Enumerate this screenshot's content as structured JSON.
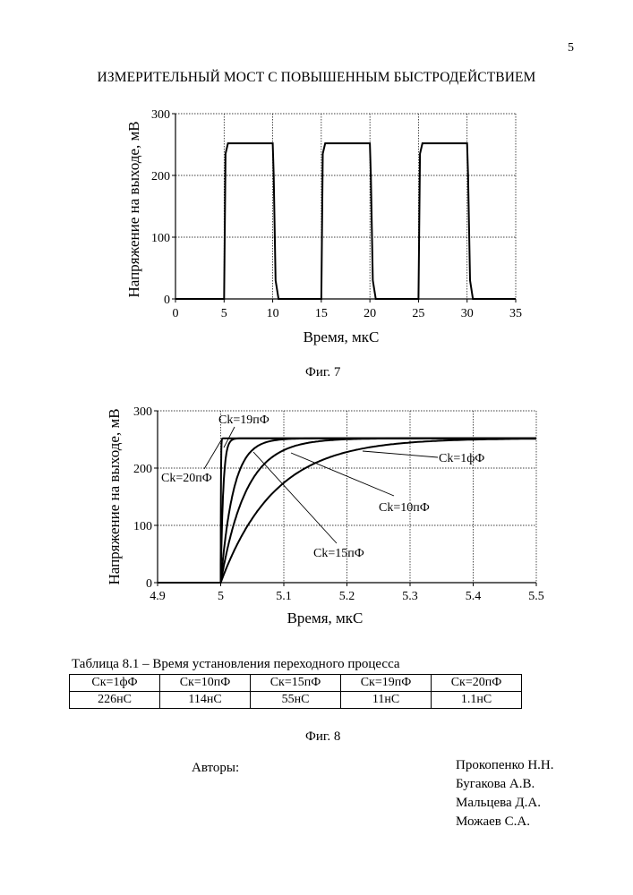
{
  "page": {
    "number": "5",
    "title": "ИЗМЕРИТЕЛЬНЫЙ МОСТ С ПОВЫШЕННЫМ БЫСТРОДЕЙСТВИЕМ"
  },
  "figures": {
    "fig7_caption": "Фиг. 7",
    "fig8_caption": "Фиг. 8"
  },
  "chart_data": [
    {
      "type": "line",
      "xlabel": "Время, мкС",
      "ylabel": "Напряжение на выходе, мВ",
      "xlim": [
        0,
        35
      ],
      "ylim": [
        0,
        300
      ],
      "x_ticks": [
        "0",
        "5",
        "10",
        "15",
        "20",
        "25",
        "30",
        "35"
      ],
      "y_ticks": [
        "0",
        "100",
        "200",
        "300"
      ],
      "grid": true,
      "series": [
        {
          "x": [
            0,
            4.9,
            5.0,
            5.15,
            5.4,
            10.0,
            10.1,
            10.3,
            10.6,
            14.9,
            15.0,
            15.15,
            15.4,
            20.0,
            20.1,
            20.3,
            20.6,
            24.9,
            25.0,
            25.15,
            25.4,
            30.0,
            30.1,
            30.3,
            30.6,
            35
          ],
          "y": [
            0,
            0,
            0,
            235,
            252,
            252,
            200,
            30,
            0,
            0,
            0,
            235,
            252,
            252,
            200,
            30,
            0,
            0,
            0,
            235,
            252,
            252,
            200,
            30,
            0,
            0
          ]
        }
      ]
    },
    {
      "type": "line",
      "xlabel": "Время, мкС",
      "ylabel": "Напряжение на выходе, мВ",
      "xlim": [
        4.9,
        5.5
      ],
      "ylim": [
        0,
        300
      ],
      "x_ticks": [
        "4.9",
        "5",
        "5.1",
        "5.2",
        "5.3",
        "5.4",
        "5.5"
      ],
      "y_ticks": [
        "0",
        "100",
        "200",
        "300"
      ],
      "grid": true,
      "series": [
        {
          "name": "Ck=20пФ",
          "final": 252,
          "tau_us": 0.0004
        },
        {
          "name": "Ck=19пФ",
          "final": 252,
          "tau_us": 0.004
        },
        {
          "name": "Ck=15пФ",
          "final": 252,
          "tau_us": 0.02
        },
        {
          "name": "Ck=10пФ",
          "final": 252,
          "tau_us": 0.04
        },
        {
          "name": "Ck=1фФ",
          "final": 252,
          "tau_us": 0.085
        }
      ],
      "annotations": [
        "Ck=19пФ",
        "Ck=20пФ",
        "Ck=1фФ",
        "Ck=10пФ",
        "Ck=15пФ"
      ]
    }
  ],
  "table": {
    "title": "Таблица 8.1 – Время установления переходного процесса",
    "headers": [
      "Ск=1фФ",
      "Ск=10пФ",
      "Ск=15пФ",
      "Ск=19пФ",
      "Ск=20пФ"
    ],
    "values": [
      "226нС",
      "114нС",
      "55нС",
      "11нС",
      "1.1нС"
    ]
  },
  "authors": {
    "label": "Авторы:",
    "names": [
      "Прокопенко Н.Н.",
      "Бугакова А.В.",
      "Мальцева Д.А.",
      "Можаев С.А."
    ]
  }
}
